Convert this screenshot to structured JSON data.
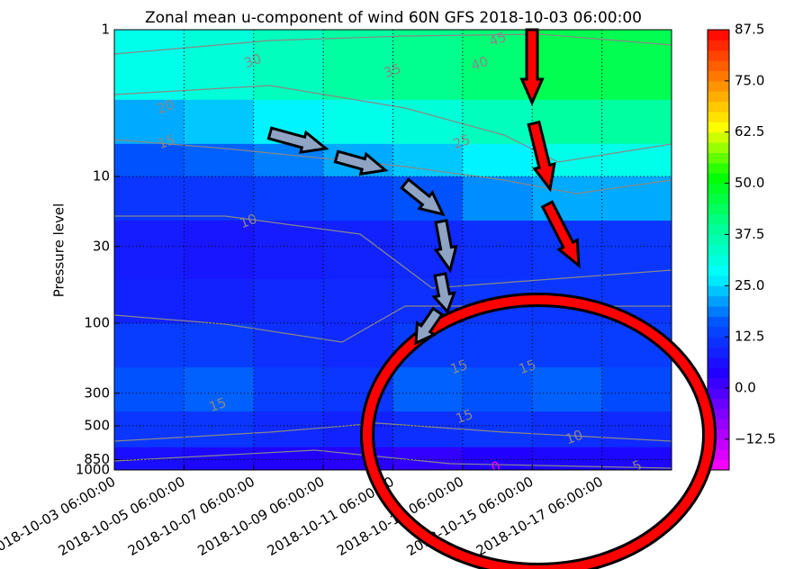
{
  "chart_data": {
    "type": "contourf",
    "title": "Zonal mean u-component of wind 60N GFS 2018-10-03 06:00:00",
    "ylabel": "Pressure level",
    "log_y": true,
    "y_inverted": true,
    "grid": true,
    "ylim": [
      1,
      1000
    ],
    "yticks": [
      1,
      10,
      30,
      100,
      300,
      500,
      850,
      1000
    ],
    "xlim": [
      "2018-10-03 06:00:00",
      "2018-10-19 06:00:00"
    ],
    "xticks": [
      "2018-10-03 06:00:00",
      "2018-10-05 06:00:00",
      "2018-10-07 06:00:00",
      "2018-10-09 06:00:00",
      "2018-10-11 06:00:00",
      "2018-10-13 06:00:00",
      "2018-10-15 06:00:00",
      "2018-10-17 06:00:00"
    ],
    "x_edges": [
      "2018-10-03 06:00:00",
      "2018-10-05 06:00:00",
      "2018-10-07 06:00:00",
      "2018-10-09 06:00:00",
      "2018-10-11 06:00:00",
      "2018-10-13 06:00:00",
      "2018-10-15 06:00:00",
      "2018-10-17 06:00:00",
      "2018-10-19 06:00:00"
    ],
    "y_edges": [
      1,
      3,
      6,
      10,
      20,
      50,
      100,
      200,
      400,
      700,
      1000
    ],
    "z": [
      [
        30,
        32,
        35,
        38,
        40,
        42,
        45,
        45
      ],
      [
        22,
        24,
        27,
        30,
        32,
        35,
        38,
        38
      ],
      [
        16,
        17,
        19,
        22,
        24,
        27,
        30,
        30
      ],
      [
        12,
        12,
        13,
        14,
        16,
        20,
        22,
        22
      ],
      [
        8,
        7,
        8,
        9,
        10,
        11,
        12,
        12
      ],
      [
        9,
        9,
        10,
        10,
        11,
        12,
        12,
        12
      ],
      [
        13,
        13,
        11,
        10,
        13,
        13,
        13,
        13
      ],
      [
        16,
        17,
        13,
        12,
        17,
        16,
        17,
        15
      ],
      [
        12,
        12,
        10,
        9,
        11,
        12,
        11,
        10
      ],
      [
        6,
        5,
        4,
        3,
        2,
        4,
        5,
        5
      ]
    ],
    "clim": [
      -20,
      87.5
    ],
    "colormap": [
      "#ff00ff",
      "#9000ff",
      "#2000ff",
      "#0050ff",
      "#00ffff",
      "#00ff90",
      "#00ff00",
      "#ffff00",
      "#ff8000",
      "#ff0000"
    ],
    "cticks": [
      {
        "value": -12.5,
        "label": "−12.5"
      },
      {
        "value": 0,
        "label": "0.0"
      },
      12.5,
      {
        "value": 25,
        "label": "25.0"
      },
      37.5,
      {
        "value": 50,
        "label": "50.0"
      },
      62.5,
      {
        "value": 75,
        "label": "75.0"
      },
      87.5
    ],
    "contour_labels": [
      45,
      40,
      35,
      30,
      25,
      20,
      15,
      10,
      15,
      15,
      15,
      15,
      10,
      5,
      0
    ]
  }
}
